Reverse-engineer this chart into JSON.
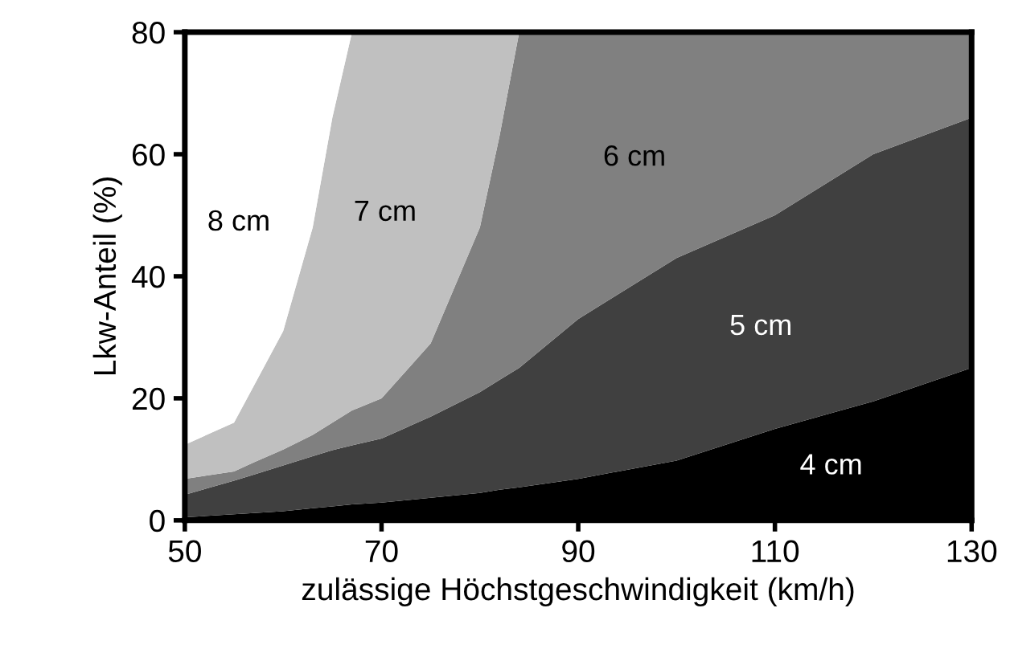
{
  "chart_data": {
    "type": "area",
    "stacked": true,
    "xlabel": "zulässige Höchstgeschwindigkeit (km/h)",
    "ylabel": "Lkw-Anteil (%)",
    "x": [
      50,
      55,
      57,
      60,
      63,
      65,
      67,
      70,
      75,
      80,
      82,
      84,
      90,
      100,
      110,
      120,
      130
    ],
    "series": [
      {
        "name": "4 cm",
        "color": "#000000",
        "values": [
          0.5,
          1,
          1.2,
          1.5,
          2,
          2.3,
          2.6,
          2.9,
          3.7,
          4.5,
          5,
          5.4,
          6.8,
          9.8,
          15,
          19.5,
          25
        ]
      },
      {
        "name": "5 cm",
        "color": "#404040",
        "values": [
          3.7,
          5.5,
          6.3,
          7.5,
          8.5,
          9.2,
          9.7,
          10.5,
          13.3,
          16.5,
          18,
          19.6,
          26.2,
          33.2,
          35,
          40.5,
          41
        ]
      },
      {
        "name": "6 cm",
        "color": "#808080",
        "values": [
          2.6,
          1.5,
          2,
          2.6,
          3.5,
          4.5,
          5.7,
          6.6,
          12,
          27,
          40,
          55,
          47,
          37,
          30,
          20,
          14
        ]
      },
      {
        "name": "7 cm",
        "color": "#c0c0c0",
        "values": [
          5.6,
          8,
          12.5,
          19.4,
          34,
          50,
          62,
          60,
          51,
          32,
          17,
          0,
          0,
          0,
          0,
          0,
          0
        ]
      },
      {
        "name": "8 cm",
        "color": "#ffffff",
        "values": [
          67.6,
          64,
          58,
          49,
          32,
          14,
          0,
          0,
          0,
          0,
          0,
          0,
          0,
          0,
          0,
          0,
          0
        ]
      }
    ],
    "xlim": [
      50,
      130
    ],
    "xticks": [
      50,
      70,
      90,
      110,
      130
    ],
    "ylim": [
      0,
      80
    ],
    "yticks": [
      0,
      20,
      40,
      60,
      80
    ],
    "grid": false,
    "legend": false
  }
}
